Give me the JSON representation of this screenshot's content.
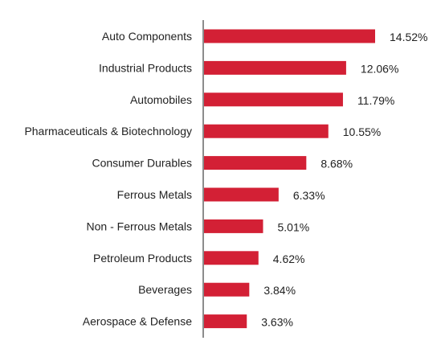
{
  "chart_data": {
    "type": "bar",
    "orientation": "horizontal",
    "categories": [
      "Auto Components",
      "Industrial Products",
      "Automobiles",
      "Pharmaceuticals & Biotechnology",
      "Consumer Durables",
      "Ferrous Metals",
      "Non - Ferrous Metals",
      "Petroleum Products",
      "Beverages",
      "Aerospace & Defense"
    ],
    "values": [
      14.52,
      12.06,
      11.79,
      10.55,
      8.68,
      6.33,
      5.01,
      4.62,
      3.84,
      3.63
    ],
    "value_labels": [
      "14.52%",
      "12.06%",
      "11.79%",
      "10.55%",
      "8.68%",
      "6.33%",
      "5.01%",
      "4.62%",
      "3.84%",
      "3.63%"
    ],
    "title": "",
    "xlabel": "",
    "ylabel": "",
    "xlim": [
      0,
      14.52
    ],
    "grid": false,
    "legend": "none",
    "colors": {
      "bar": "#d32035",
      "axis": "#8c8c8c",
      "text": "#222222"
    }
  }
}
